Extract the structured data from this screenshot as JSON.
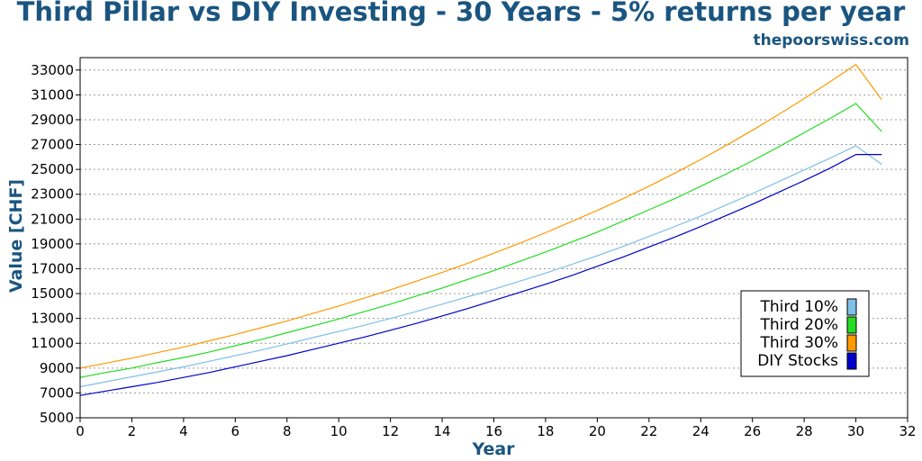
{
  "chart_data": {
    "type": "line",
    "title": "Third Pillar vs DIY Investing - 30 Years - 5% returns per year",
    "source": "thepoorswiss.com",
    "xlabel": "Year",
    "ylabel": "Value [CHF]",
    "xlim": [
      0,
      32
    ],
    "ylim": [
      5000,
      34000
    ],
    "xticks": [
      0,
      2,
      4,
      6,
      8,
      10,
      12,
      14,
      16,
      18,
      20,
      22,
      24,
      26,
      28,
      30,
      32
    ],
    "yticks": [
      5000,
      7000,
      9000,
      11000,
      13000,
      15000,
      17000,
      19000,
      21000,
      23000,
      25000,
      27000,
      29000,
      31000,
      33000
    ],
    "grid": "horizontal dotted",
    "legend_position": "bottom-right",
    "x": [
      0,
      1,
      2,
      3,
      4,
      5,
      6,
      7,
      8,
      9,
      10,
      11,
      12,
      13,
      14,
      15,
      16,
      17,
      18,
      19,
      20,
      21,
      22,
      23,
      24,
      25,
      26,
      27,
      28,
      29,
      30,
      31
    ],
    "series": [
      {
        "name": "Third 10%",
        "color": "#7ec0e6",
        "values": [
          7500,
          7900,
          8300,
          8700,
          9100,
          9550,
          10000,
          10450,
          10950,
          11450,
          11950,
          12450,
          13000,
          13550,
          14150,
          14750,
          15350,
          16000,
          16650,
          17350,
          18050,
          18800,
          19600,
          20400,
          21250,
          22150,
          23050,
          24000,
          24950,
          25900,
          26900,
          25400
        ]
      },
      {
        "name": "Third 20%",
        "color": "#22dd22",
        "values": [
          8250,
          8650,
          9000,
          9450,
          9850,
          10300,
          10800,
          11300,
          11850,
          12400,
          12950,
          13550,
          14150,
          14800,
          15450,
          16150,
          16850,
          17600,
          18350,
          19150,
          19950,
          20850,
          21750,
          22650,
          23650,
          24650,
          25700,
          26800,
          27950,
          29100,
          30300,
          28050
        ]
      },
      {
        "name": "Third 30%",
        "color": "#ff9900",
        "values": [
          9000,
          9400,
          9800,
          10250,
          10700,
          11200,
          11700,
          12250,
          12800,
          13400,
          14000,
          14650,
          15300,
          16000,
          16700,
          17450,
          18250,
          19050,
          19900,
          20800,
          21700,
          22650,
          23650,
          24700,
          25800,
          26950,
          28150,
          29400,
          30700,
          32050,
          33450,
          30600
        ]
      },
      {
        "name": "DIY Stocks",
        "color": "#0000cc",
        "values": [
          6800,
          7150,
          7500,
          7850,
          8250,
          8650,
          9100,
          9550,
          10000,
          10500,
          11000,
          11500,
          12050,
          12600,
          13200,
          13800,
          14450,
          15100,
          15750,
          16450,
          17200,
          17950,
          18750,
          19550,
          20400,
          21300,
          22200,
          23150,
          24100,
          25100,
          26200,
          26200
        ]
      }
    ]
  }
}
